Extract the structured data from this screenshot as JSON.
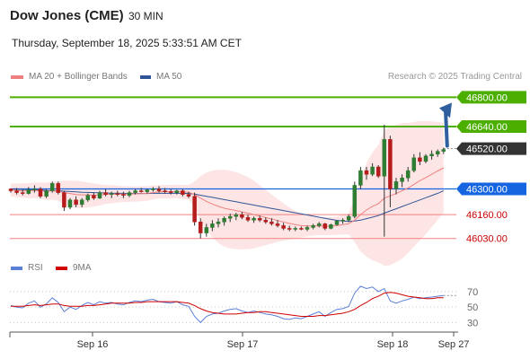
{
  "header": {
    "title": "Dow Jones (CME)",
    "interval": "30 MIN",
    "datetime": "Thursday, September 18, 2025 5:33:51 AM CET",
    "credit": "Research © 2025 Trading Central"
  },
  "legend": {
    "ma20": "MA 20 + Bollinger Bands",
    "ma50": "MA 50",
    "rsi": "RSI",
    "rsi_ma": "9MA"
  },
  "colors": {
    "ma20": "#f08080",
    "ma50": "#2f5597",
    "band_fill": "#fde1e1",
    "bullish": "#2e7d32",
    "bearish": "#b71c1c",
    "target_green": "#4caf00",
    "pivot_blue": "#1565e0",
    "support_red": "#f08080",
    "support_text": "#cc0000",
    "current_price": "#333333",
    "arrow": "#2f5f9e",
    "rsi": "#5b7fd6",
    "rsi_ma": "#d00000"
  },
  "chart_data": [
    {
      "type": "candlestick",
      "title": "",
      "ylim": [
        45960,
        46880
      ],
      "x_tick_labels": [
        "Sep 16",
        "Sep 17",
        "Sep 18",
        "Sep 27"
      ],
      "levels": [
        {
          "label": "46800.00",
          "value": 46800,
          "kind": "target"
        },
        {
          "label": "46640.00",
          "value": 46640,
          "kind": "target"
        },
        {
          "label": "46520.00",
          "value": 46520,
          "kind": "current"
        },
        {
          "label": "46300.00",
          "value": 46300,
          "kind": "pivot"
        },
        {
          "label": "46160.00",
          "value": 46160,
          "kind": "support"
        },
        {
          "label": "46030.00",
          "value": 46030,
          "kind": "support"
        }
      ],
      "candles": [
        [
          46300,
          46300,
          46280,
          46290
        ],
        [
          46290,
          46305,
          46270,
          46280
        ],
        [
          46280,
          46295,
          46265,
          46275
        ],
        [
          46275,
          46310,
          46270,
          46295
        ],
        [
          46295,
          46320,
          46280,
          46300
        ],
        [
          46300,
          46310,
          46250,
          46260
        ],
        [
          46260,
          46300,
          46250,
          46290
        ],
        [
          46290,
          46340,
          46280,
          46330
        ],
        [
          46330,
          46340,
          46270,
          46280
        ],
        [
          46280,
          46290,
          46180,
          46200
        ],
        [
          46200,
          46250,
          46190,
          46240
        ],
        [
          46240,
          46260,
          46200,
          46215
        ],
        [
          46215,
          46250,
          46200,
          46240
        ],
        [
          46240,
          46275,
          46230,
          46265
        ],
        [
          46265,
          46280,
          46240,
          46250
        ],
        [
          46250,
          46290,
          46245,
          46280
        ],
        [
          46280,
          46300,
          46260,
          46270
        ],
        [
          46270,
          46285,
          46250,
          46275
        ],
        [
          46275,
          46290,
          46260,
          46270
        ],
        [
          46270,
          46285,
          46250,
          46265
        ],
        [
          46265,
          46290,
          46255,
          46280
        ],
        [
          46280,
          46300,
          46270,
          46290
        ],
        [
          46290,
          46305,
          46280,
          46285
        ],
        [
          46285,
          46300,
          46275,
          46295
        ],
        [
          46295,
          46310,
          46285,
          46300
        ],
        [
          46300,
          46315,
          46280,
          46290
        ],
        [
          46290,
          46305,
          46275,
          46285
        ],
        [
          46285,
          46300,
          46270,
          46280
        ],
        [
          46280,
          46295,
          46270,
          46290
        ],
        [
          46290,
          46300,
          46260,
          46270
        ],
        [
          46270,
          46285,
          46250,
          46260
        ],
        [
          46260,
          46280,
          46100,
          46120
        ],
        [
          46120,
          46140,
          46030,
          46060
        ],
        [
          46060,
          46110,
          46040,
          46090
        ],
        [
          46090,
          46130,
          46070,
          46110
        ],
        [
          46110,
          46140,
          46090,
          46120
        ],
        [
          46120,
          46150,
          46100,
          46140
        ],
        [
          46140,
          46165,
          46120,
          46150
        ],
        [
          46150,
          46170,
          46130,
          46160
        ],
        [
          46160,
          46175,
          46135,
          46145
        ],
        [
          46145,
          46160,
          46120,
          46130
        ],
        [
          46130,
          46150,
          46115,
          46140
        ],
        [
          46140,
          46155,
          46120,
          46130
        ],
        [
          46130,
          46145,
          46110,
          46120
        ],
        [
          46120,
          46140,
          46100,
          46110
        ],
        [
          46110,
          46130,
          46090,
          46100
        ],
        [
          46100,
          46115,
          46075,
          46085
        ],
        [
          46085,
          46100,
          46070,
          46080
        ],
        [
          46080,
          46095,
          46070,
          46085
        ],
        [
          46085,
          46095,
          46075,
          46080
        ],
        [
          46080,
          46100,
          46070,
          46090
        ],
        [
          46090,
          46110,
          46080,
          46100
        ],
        [
          46100,
          46120,
          46090,
          46110
        ],
        [
          46110,
          46115,
          46075,
          46085
        ],
        [
          46085,
          46110,
          46080,
          46105
        ],
        [
          46105,
          46130,
          46100,
          46125
        ],
        [
          46125,
          46140,
          46110,
          46130
        ],
        [
          46130,
          46160,
          46120,
          46150
        ],
        [
          46150,
          46340,
          46140,
          46320
        ],
        [
          46320,
          46420,
          46300,
          46400
        ],
        [
          46400,
          46420,
          46350,
          46380
        ],
        [
          46380,
          46440,
          46370,
          46420
        ],
        [
          46420,
          46430,
          46360,
          46370
        ],
        [
          46370,
          46650,
          46040,
          46570
        ],
        [
          46570,
          46590,
          46200,
          46300
        ],
        [
          46300,
          46360,
          46270,
          46340
        ],
        [
          46340,
          46380,
          46310,
          46360
        ],
        [
          46360,
          46420,
          46340,
          46400
        ],
        [
          46400,
          46490,
          46390,
          46470
        ],
        [
          46470,
          46500,
          46430,
          46450
        ],
        [
          46450,
          46490,
          46440,
          46480
        ],
        [
          46480,
          46510,
          46460,
          46490
        ],
        [
          46490,
          46515,
          46475,
          46505
        ],
        [
          46505,
          46525,
          46490,
          46515
        ]
      ],
      "ma20": [
        46295,
        46292,
        46290,
        46290,
        46292,
        46290,
        46287,
        46290,
        46288,
        46280,
        46275,
        46270,
        46268,
        46268,
        46266,
        46268,
        46270,
        46271,
        46272,
        46272,
        46272,
        46273,
        46274,
        46276,
        46280,
        46284,
        46285,
        46285,
        46286,
        46284,
        46282,
        46270,
        46250,
        46232,
        46218,
        46205,
        46195,
        46188,
        46182,
        46175,
        46168,
        46160,
        46152,
        46144,
        46136,
        46128,
        46120,
        46112,
        46106,
        46100,
        46098,
        46098,
        46098,
        46097,
        46097,
        46100,
        46105,
        46110,
        46130,
        46160,
        46185,
        46205,
        46220,
        46250,
        46262,
        46275,
        46290,
        46305,
        46325,
        46345,
        46362,
        46380,
        46398,
        46415
      ],
      "ma50": [
        46300,
        46298,
        46297,
        46296,
        46295,
        46294,
        46292,
        46291,
        46290,
        46288,
        46286,
        46284,
        46282,
        46281,
        46280,
        46279,
        46278,
        46277,
        46276,
        46276,
        46275,
        46275,
        46275,
        46275,
        46276,
        46276,
        46276,
        46276,
        46277,
        46276,
        46275,
        46272,
        46266,
        46260,
        46254,
        46248,
        46242,
        46236,
        46230,
        46224,
        46218,
        46212,
        46206,
        46200,
        46194,
        46188,
        46182,
        46176,
        46170,
        46164,
        46158,
        46152,
        46146,
        46140,
        46134,
        46129,
        46125,
        46123,
        46125,
        46130,
        46138,
        46146,
        46155,
        46168,
        46180,
        46192,
        46204,
        46216,
        46228,
        46240,
        46252,
        46264,
        46276,
        46290
      ],
      "bb_upper": [
        46330,
        46330,
        46330,
        46332,
        46335,
        46335,
        46335,
        46340,
        46340,
        46345,
        46345,
        46344,
        46340,
        46335,
        46330,
        46325,
        46322,
        46320,
        46318,
        46316,
        46315,
        46315,
        46315,
        46316,
        46318,
        46320,
        46322,
        46322,
        46323,
        46322,
        46322,
        46340,
        46370,
        46390,
        46400,
        46405,
        46405,
        46400,
        46392,
        46380,
        46365,
        46345,
        46320,
        46295,
        46270,
        46245,
        46222,
        46200,
        46180,
        46165,
        46155,
        46150,
        46148,
        46146,
        46146,
        46150,
        46158,
        46168,
        46250,
        46360,
        46440,
        46500,
        46540,
        46620,
        46640,
        46650,
        46660,
        46660,
        46665,
        46670,
        46670,
        46668,
        46665,
        46660
      ],
      "bb_lower": [
        46260,
        46255,
        46252,
        46250,
        46250,
        46246,
        46240,
        46240,
        46236,
        46215,
        46205,
        46196,
        46196,
        46200,
        46203,
        46210,
        46218,
        46222,
        46226,
        46228,
        46229,
        46231,
        46233,
        46236,
        46242,
        46248,
        46248,
        46248,
        46250,
        46246,
        46242,
        46200,
        46130,
        46075,
        46036,
        46005,
        45985,
        45976,
        45972,
        45970,
        45972,
        45975,
        45985,
        45993,
        46002,
        46011,
        46018,
        46024,
        46032,
        46035,
        46041,
        46046,
        46048,
        46048,
        46048,
        46050,
        46052,
        46052,
        46010,
        45960,
        45930,
        45910,
        45900,
        45880,
        45884,
        45900,
        45920,
        45950,
        45985,
        46020,
        46054,
        46092,
        46131,
        46170
      ]
    },
    {
      "type": "line",
      "title": "",
      "ylim": [
        20,
        85
      ],
      "y_ticks": [
        70,
        50,
        30
      ],
      "series": [
        {
          "name": "RSI",
          "values": [
            52,
            50,
            49,
            55,
            58,
            50,
            54,
            62,
            56,
            44,
            50,
            47,
            52,
            56,
            53,
            57,
            55,
            56,
            54,
            53,
            56,
            58,
            57,
            59,
            60,
            57,
            56,
            55,
            57,
            53,
            51,
            38,
            30,
            38,
            41,
            42,
            45,
            47,
            48,
            45,
            43,
            45,
            43,
            41,
            40,
            38,
            35,
            34,
            36,
            35,
            38,
            41,
            44,
            38,
            43,
            47,
            48,
            51,
            68,
            77,
            74,
            76,
            70,
            74,
            58,
            55,
            58,
            60,
            63,
            61,
            62,
            63,
            64,
            65
          ]
        },
        {
          "name": "9MA",
          "values": [
            51,
            51,
            51,
            52,
            53,
            52,
            53,
            54,
            54,
            52,
            51,
            51,
            51,
            52,
            52,
            53,
            54,
            55,
            55,
            55,
            55,
            56,
            56,
            57,
            57,
            57,
            57,
            57,
            57,
            56,
            55,
            52,
            48,
            45,
            43,
            42,
            41,
            41,
            41,
            42,
            43,
            43,
            44,
            44,
            43,
            42,
            41,
            40,
            39,
            38,
            38,
            38,
            39,
            39,
            40,
            41,
            42,
            44,
            47,
            52,
            56,
            61,
            64,
            68,
            69,
            68,
            66,
            64,
            63,
            62,
            61,
            61,
            62,
            62
          ]
        }
      ]
    }
  ]
}
